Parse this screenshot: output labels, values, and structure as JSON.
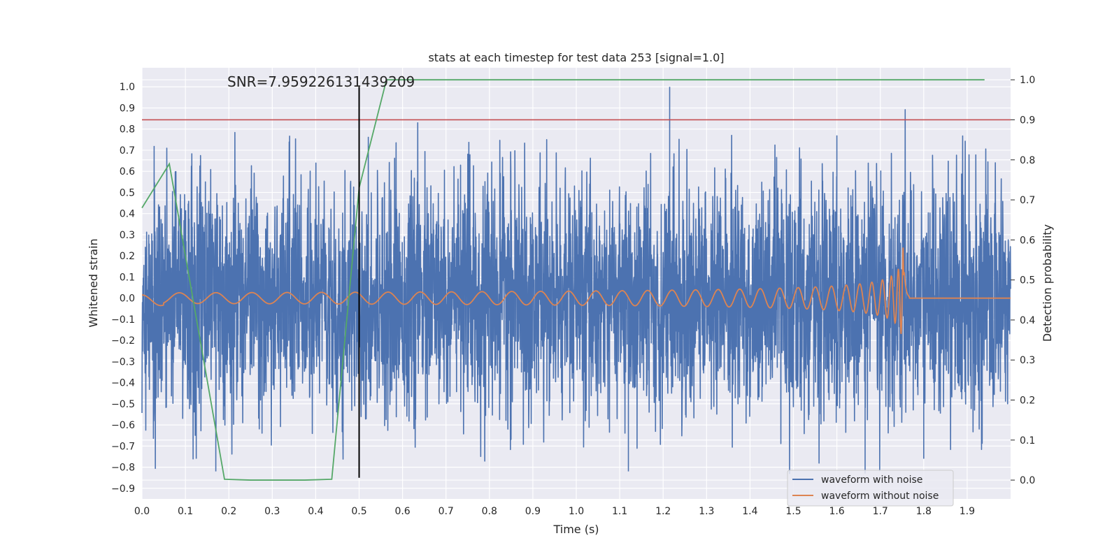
{
  "chart_data": {
    "type": "line",
    "title": "stats at each timestep for test data 253 [signal=1.0]",
    "xlabel": "Time (s)",
    "ylabel": "Whitened strain",
    "y2label": "Detection probability",
    "annotation": "SNR=7.959226131439209",
    "xlim": [
      0.0,
      2.0
    ],
    "ylim": [
      -0.95,
      1.09
    ],
    "y2lim": [
      -0.047,
      1.03
    ],
    "xticks": [
      0.0,
      0.1,
      0.2,
      0.3,
      0.4,
      0.5,
      0.6,
      0.7,
      0.8,
      0.9,
      1.0,
      1.1,
      1.2,
      1.3,
      1.4,
      1.5,
      1.6,
      1.7,
      1.8,
      1.9
    ],
    "xtick_labels": [
      "0.0",
      "0.1",
      "0.2",
      "0.3",
      "0.4",
      "0.5",
      "0.6",
      "0.7",
      "0.8",
      "0.9",
      "1.0",
      "1.1",
      "1.2",
      "1.3",
      "1.4",
      "1.5",
      "1.6",
      "1.7",
      "1.8",
      "1.9"
    ],
    "yticks": [
      1.0,
      0.9,
      0.8,
      0.7,
      0.6,
      0.5,
      0.4,
      0.3,
      0.2,
      0.1,
      0.0,
      -0.1,
      -0.2,
      -0.3,
      -0.4,
      -0.5,
      -0.6,
      -0.7,
      -0.8,
      -0.9
    ],
    "ytick_labels": [
      "1.0",
      "0.9",
      "0.8",
      "0.7",
      "0.6",
      "0.5",
      "0.4",
      "0.3",
      "0.2",
      "0.1",
      "0.0",
      "−0.1",
      "−0.2",
      "−0.3",
      "−0.4",
      "−0.5",
      "−0.6",
      "−0.7",
      "−0.8",
      "−0.9"
    ],
    "y2ticks": [
      1.0,
      0.9,
      0.8,
      0.7,
      0.6,
      0.5,
      0.4,
      0.3,
      0.2,
      0.1,
      0.0
    ],
    "y2tick_labels": [
      "1.0",
      "0.9",
      "0.8",
      "0.7",
      "0.6",
      "0.5",
      "0.4",
      "0.3",
      "0.2",
      "0.1",
      "0.0"
    ],
    "grid": true,
    "legend_placement": "lower-right",
    "series": [
      {
        "name": "waveform with noise",
        "color": "#4c72b0",
        "kind": "noisy-strain",
        "approx_std": 0.27,
        "approx_range": [
          -0.83,
          1.0
        ],
        "x_range": [
          0.0,
          2.0
        ]
      },
      {
        "name": "waveform without noise",
        "color": "#dd8452",
        "kind": "chirp",
        "start_amplitude": 0.025,
        "peak_amplitude": 0.35,
        "merger_time": 1.755,
        "x_range": [
          0.0,
          2.0
        ]
      }
    ],
    "detection_probability": {
      "color": "#55a868",
      "axis": "right",
      "x": [
        0.0,
        0.063,
        0.19,
        0.25,
        0.375,
        0.437,
        0.5,
        0.563,
        1.94
      ],
      "y": [
        0.68,
        0.79,
        0.002,
        0.0,
        0.0,
        0.002,
        0.73,
        1.0,
        1.0
      ]
    },
    "threshold": {
      "color": "#c44e52",
      "axis": "right",
      "value": 0.9
    },
    "marker_line": {
      "color": "#000000",
      "x": 0.5,
      "y_range": [
        -0.85,
        1.0
      ]
    }
  }
}
